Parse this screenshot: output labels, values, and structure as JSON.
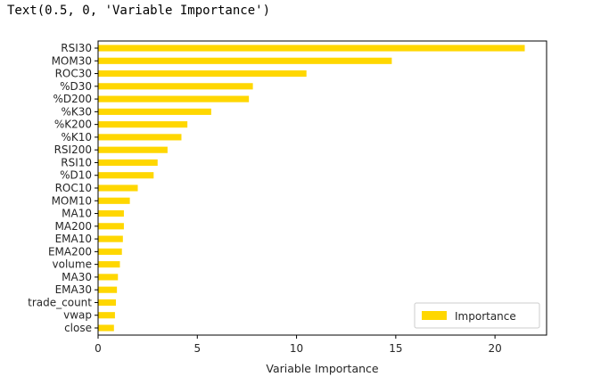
{
  "output": {
    "text": "Text(0.5, 0, 'Variable Importance')"
  },
  "colors": {
    "bar": "#FFD700",
    "axis": "#000000"
  },
  "chart_data": {
    "type": "bar",
    "orientation": "horizontal",
    "categories": [
      "RSI30",
      "MOM30",
      "ROC30",
      "%D30",
      "%D200",
      "%K30",
      "%K200",
      "%K10",
      "RSI200",
      "RSI10",
      "%D10",
      "ROC10",
      "MOM10",
      "MA10",
      "MA200",
      "EMA10",
      "EMA200",
      "volume",
      "MA30",
      "EMA30",
      "trade_count",
      "vwap",
      "close"
    ],
    "series": [
      {
        "name": "Importance",
        "values": [
          21.5,
          14.8,
          10.5,
          7.8,
          7.6,
          5.7,
          4.5,
          4.2,
          3.5,
          3.0,
          2.8,
          2.0,
          1.6,
          1.3,
          1.3,
          1.25,
          1.2,
          1.1,
          1.0,
          0.95,
          0.9,
          0.85,
          0.8
        ]
      }
    ],
    "xlabel": "Variable Importance",
    "xlim": [
      0,
      22.6
    ],
    "xticks": [
      0,
      5,
      10,
      15,
      20
    ],
    "grid": false,
    "legend_position": "bottom-right"
  }
}
